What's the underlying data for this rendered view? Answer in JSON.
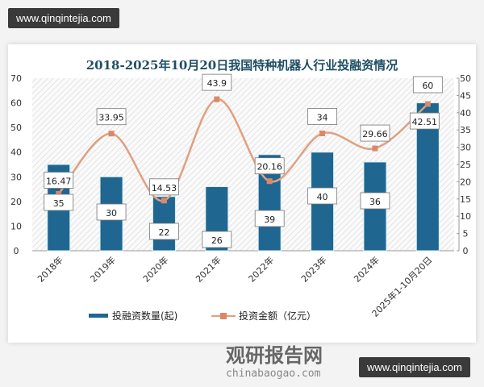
{
  "watermark": "www.qinqintejia.com",
  "brand": {
    "name": "观研报告网",
    "url": "chinabaogao.com"
  },
  "chart_data": {
    "type": "bar+line",
    "title": "2018-2025年10月20日我国特种机器人行业投融资情况",
    "categories": [
      "2018年",
      "2019年",
      "2020年",
      "2021年",
      "2022年",
      "2023年",
      "2024年",
      "2025年1-10月20日"
    ],
    "series": [
      {
        "name": "投融资数量(起)",
        "type": "bar",
        "axis": "left",
        "color": "#1f6690",
        "values": [
          35,
          30,
          22,
          26,
          39,
          40,
          36,
          60
        ]
      },
      {
        "name": "投资金额（亿元）",
        "type": "line",
        "axis": "right",
        "color": "#e0a080",
        "values": [
          16.47,
          33.95,
          14.53,
          43.9,
          20.16,
          34,
          29.66,
          42.51
        ]
      }
    ],
    "left_axis": {
      "min": 0,
      "max": 70,
      "ticks": [
        0,
        10,
        20,
        30,
        40,
        50,
        60,
        70
      ]
    },
    "right_axis": {
      "min": 0,
      "max": 50,
      "ticks": [
        0,
        5,
        10,
        15,
        20,
        25,
        30,
        35,
        40,
        45,
        50
      ]
    },
    "legend": "bottom"
  }
}
